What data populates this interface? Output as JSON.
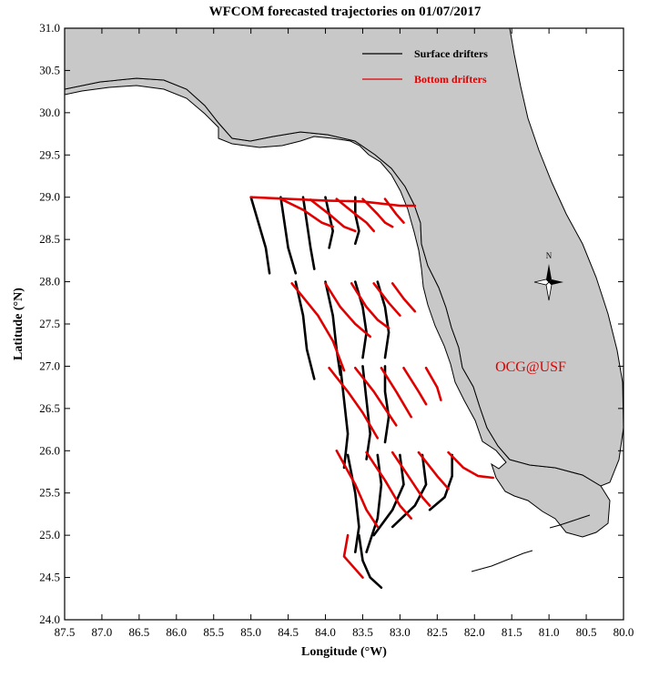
{
  "title": "WFCOM forecasted trajectories on 01/07/2017",
  "xlabel": "Longitude (°W)",
  "ylabel": "Latitude (°N)",
  "x_ticks": [
    "87.5",
    "87.0",
    "86.5",
    "86.0",
    "85.5",
    "85.0",
    "84.5",
    "84.0",
    "83.5",
    "83.0",
    "82.5",
    "82.0",
    "81.5",
    "81.0",
    "80.5",
    "80.0"
  ],
  "y_ticks": [
    "31.0",
    "30.5",
    "30.0",
    "29.5",
    "29.0",
    "28.5",
    "28.0",
    "27.5",
    "27.0",
    "26.5",
    "26.0",
    "25.5",
    "25.0",
    "24.5",
    "24.0"
  ],
  "legend": {
    "surface_label": "Surface drifters",
    "bottom_label": "Bottom drifters",
    "surface_color": "#000000",
    "bottom_color": "#e00000"
  },
  "watermark": "OCG@USF",
  "north_label": "N",
  "colors": {
    "land": "#c8c8c8",
    "water": "#ffffff",
    "red": "#e00000"
  },
  "chart_data": {
    "type": "map-trajectories",
    "xlim": [
      87.5,
      80.0
    ],
    "ylim": [
      24.0,
      31.0
    ],
    "surface_trajectories": [
      [
        [
          85.0,
          29.0
        ],
        [
          84.9,
          28.7
        ],
        [
          84.8,
          28.4
        ],
        [
          84.75,
          28.1
        ]
      ],
      [
        [
          84.6,
          29.0
        ],
        [
          84.55,
          28.7
        ],
        [
          84.5,
          28.4
        ],
        [
          84.4,
          28.1
        ]
      ],
      [
        [
          84.3,
          29.0
        ],
        [
          84.25,
          28.7
        ],
        [
          84.2,
          28.4
        ],
        [
          84.15,
          28.15
        ]
      ],
      [
        [
          84.0,
          29.0
        ],
        [
          83.95,
          28.8
        ],
        [
          83.9,
          28.6
        ],
        [
          83.95,
          28.4
        ]
      ],
      [
        [
          83.6,
          29.0
        ],
        [
          83.6,
          28.8
        ],
        [
          83.55,
          28.6
        ],
        [
          83.6,
          28.45
        ]
      ],
      [
        [
          84.4,
          28.0
        ],
        [
          84.3,
          27.6
        ],
        [
          84.25,
          27.2
        ],
        [
          84.15,
          26.85
        ]
      ],
      [
        [
          84.0,
          28.0
        ],
        [
          83.9,
          27.6
        ],
        [
          83.85,
          27.2
        ],
        [
          83.8,
          26.9
        ]
      ],
      [
        [
          83.6,
          28.0
        ],
        [
          83.5,
          27.7
        ],
        [
          83.45,
          27.4
        ],
        [
          83.5,
          27.1
        ]
      ],
      [
        [
          83.3,
          28.0
        ],
        [
          83.2,
          27.7
        ],
        [
          83.15,
          27.4
        ],
        [
          83.2,
          27.1
        ]
      ],
      [
        [
          83.8,
          27.0
        ],
        [
          83.75,
          26.6
        ],
        [
          83.7,
          26.2
        ],
        [
          83.75,
          25.8
        ]
      ],
      [
        [
          83.5,
          27.0
        ],
        [
          83.45,
          26.6
        ],
        [
          83.4,
          26.2
        ],
        [
          83.45,
          25.9
        ]
      ],
      [
        [
          83.2,
          27.0
        ],
        [
          83.2,
          26.7
        ],
        [
          83.15,
          26.4
        ],
        [
          83.2,
          26.1
        ]
      ],
      [
        [
          83.7,
          25.95
        ],
        [
          83.6,
          25.5
        ],
        [
          83.55,
          25.1
        ],
        [
          83.6,
          24.8
        ]
      ],
      [
        [
          83.3,
          25.95
        ],
        [
          83.25,
          25.6
        ],
        [
          83.3,
          25.2
        ],
        [
          83.45,
          24.8
        ]
      ],
      [
        [
          83.0,
          25.95
        ],
        [
          82.95,
          25.6
        ],
        [
          83.1,
          25.3
        ],
        [
          83.35,
          25.0
        ]
      ],
      [
        [
          82.7,
          25.95
        ],
        [
          82.65,
          25.6
        ],
        [
          82.8,
          25.35
        ],
        [
          83.1,
          25.1
        ]
      ],
      [
        [
          82.3,
          25.95
        ],
        [
          82.3,
          25.7
        ],
        [
          82.4,
          25.45
        ],
        [
          82.6,
          25.3
        ]
      ],
      [
        [
          83.55,
          25.0
        ],
        [
          83.5,
          24.7
        ],
        [
          83.4,
          24.5
        ],
        [
          83.25,
          24.38
        ]
      ]
    ],
    "bottom_trajectories": [
      [
        [
          85.0,
          29.0
        ],
        [
          84.5,
          28.98
        ],
        [
          84.0,
          28.96
        ],
        [
          83.5,
          28.95
        ],
        [
          83.0,
          28.9
        ],
        [
          82.8,
          28.9
        ]
      ],
      [
        [
          84.6,
          28.98
        ],
        [
          84.3,
          28.85
        ],
        [
          84.05,
          28.7
        ],
        [
          83.9,
          28.65
        ]
      ],
      [
        [
          84.2,
          28.97
        ],
        [
          83.95,
          28.8
        ],
        [
          83.75,
          28.65
        ],
        [
          83.6,
          28.6
        ]
      ],
      [
        [
          83.85,
          28.98
        ],
        [
          83.6,
          28.8
        ],
        [
          83.45,
          28.7
        ],
        [
          83.35,
          28.6
        ]
      ],
      [
        [
          83.5,
          28.98
        ],
        [
          83.3,
          28.8
        ],
        [
          83.2,
          28.7
        ],
        [
          83.1,
          28.65
        ]
      ],
      [
        [
          83.2,
          28.98
        ],
        [
          83.05,
          28.8
        ],
        [
          82.95,
          28.7
        ]
      ],
      [
        [
          84.45,
          27.98
        ],
        [
          84.1,
          27.6
        ],
        [
          83.9,
          27.3
        ],
        [
          83.75,
          26.95
        ]
      ],
      [
        [
          84.0,
          27.98
        ],
        [
          83.8,
          27.7
        ],
        [
          83.6,
          27.5
        ],
        [
          83.4,
          27.35
        ]
      ],
      [
        [
          83.65,
          27.98
        ],
        [
          83.45,
          27.7
        ],
        [
          83.3,
          27.55
        ],
        [
          83.15,
          27.45
        ]
      ],
      [
        [
          83.35,
          27.98
        ],
        [
          83.15,
          27.75
        ],
        [
          83.0,
          27.6
        ]
      ],
      [
        [
          83.1,
          27.98
        ],
        [
          82.95,
          27.8
        ],
        [
          82.8,
          27.65
        ]
      ],
      [
        [
          83.95,
          26.98
        ],
        [
          83.7,
          26.7
        ],
        [
          83.5,
          26.45
        ],
        [
          83.3,
          26.15
        ]
      ],
      [
        [
          83.6,
          26.98
        ],
        [
          83.35,
          26.7
        ],
        [
          83.2,
          26.5
        ],
        [
          83.05,
          26.3
        ]
      ],
      [
        [
          83.25,
          26.98
        ],
        [
          83.05,
          26.7
        ],
        [
          82.95,
          26.55
        ],
        [
          82.85,
          26.4
        ]
      ],
      [
        [
          82.95,
          26.98
        ],
        [
          82.75,
          26.7
        ],
        [
          82.65,
          26.55
        ]
      ],
      [
        [
          82.65,
          26.98
        ],
        [
          82.5,
          26.75
        ],
        [
          82.45,
          26.6
        ]
      ],
      [
        [
          83.85,
          26.0
        ],
        [
          83.6,
          25.6
        ],
        [
          83.45,
          25.3
        ],
        [
          83.3,
          25.1
        ]
      ],
      [
        [
          83.45,
          25.98
        ],
        [
          83.2,
          25.65
        ],
        [
          83.0,
          25.35
        ],
        [
          82.85,
          25.2
        ]
      ],
      [
        [
          83.1,
          25.98
        ],
        [
          82.85,
          25.65
        ],
        [
          82.7,
          25.45
        ],
        [
          82.6,
          25.35
        ]
      ],
      [
        [
          82.75,
          25.98
        ],
        [
          82.5,
          25.7
        ],
        [
          82.35,
          25.55
        ]
      ],
      [
        [
          82.35,
          25.98
        ],
        [
          82.15,
          25.8
        ],
        [
          81.95,
          25.7
        ],
        [
          81.75,
          25.68
        ]
      ],
      [
        [
          83.7,
          25.0
        ],
        [
          83.75,
          24.75
        ],
        [
          83.6,
          24.6
        ],
        [
          83.5,
          24.5
        ]
      ]
    ]
  }
}
